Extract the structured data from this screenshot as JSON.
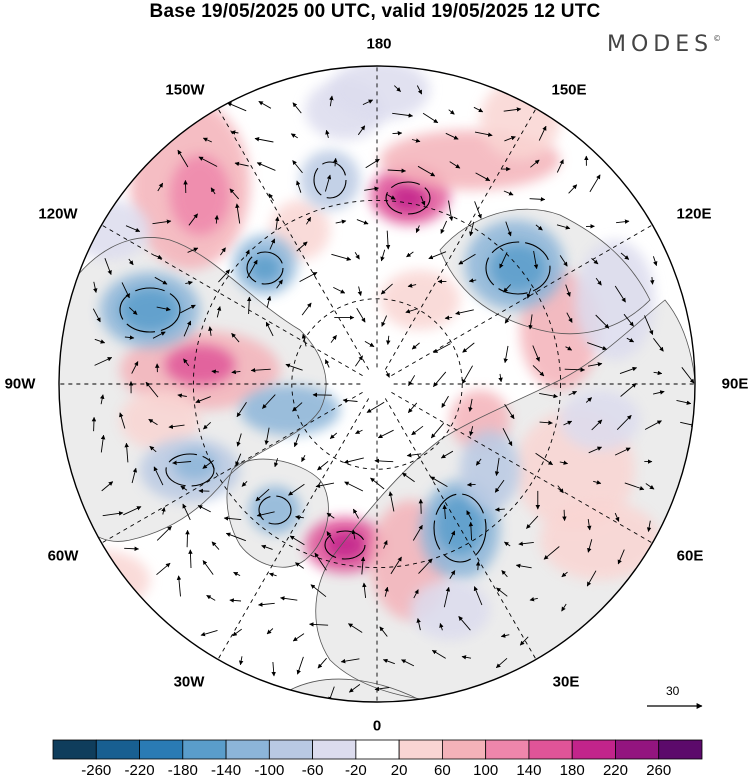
{
  "header": {
    "title": "Base 19/05/2025 00 UTC, valid 19/05/2025 12 UTC",
    "logo": "MODES",
    "logo_mark": "©"
  },
  "map": {
    "projection": "north-polar-stereographic",
    "longitude_labels": [
      {
        "id": "lon-180",
        "text": "180"
      },
      {
        "id": "lon-150e",
        "text": "150E"
      },
      {
        "id": "lon-120e",
        "text": "120E"
      },
      {
        "id": "lon-90e",
        "text": "90E"
      },
      {
        "id": "lon-60e",
        "text": "60E"
      },
      {
        "id": "lon-30e",
        "text": "30E"
      },
      {
        "id": "lon-0",
        "text": "0"
      },
      {
        "id": "lon-30w",
        "text": "30W"
      },
      {
        "id": "lon-60w",
        "text": "60W"
      },
      {
        "id": "lon-90w",
        "text": "90W"
      },
      {
        "id": "lon-120w",
        "text": "120W"
      },
      {
        "id": "lon-150w",
        "text": "150W"
      }
    ],
    "land_color": "#ececec",
    "ocean_color": "#ffffff"
  },
  "vector_scale": {
    "label": "30"
  },
  "legend": {
    "boundaries": [
      "-260",
      "-220",
      "-180",
      "-140",
      "-100",
      "-60",
      "-20",
      "20",
      "60",
      "100",
      "140",
      "180",
      "220",
      "260"
    ],
    "colors": [
      "#0f3d5c",
      "#185f91",
      "#2a7bb4",
      "#5a9dcb",
      "#8cb5d9",
      "#b9c9e3",
      "#dcdcee",
      "#ffffff",
      "#f9d5d3",
      "#f4b2b9",
      "#ee86ab",
      "#e05498",
      "#c2248b",
      "#93157f",
      "#5c0a6b"
    ]
  }
}
